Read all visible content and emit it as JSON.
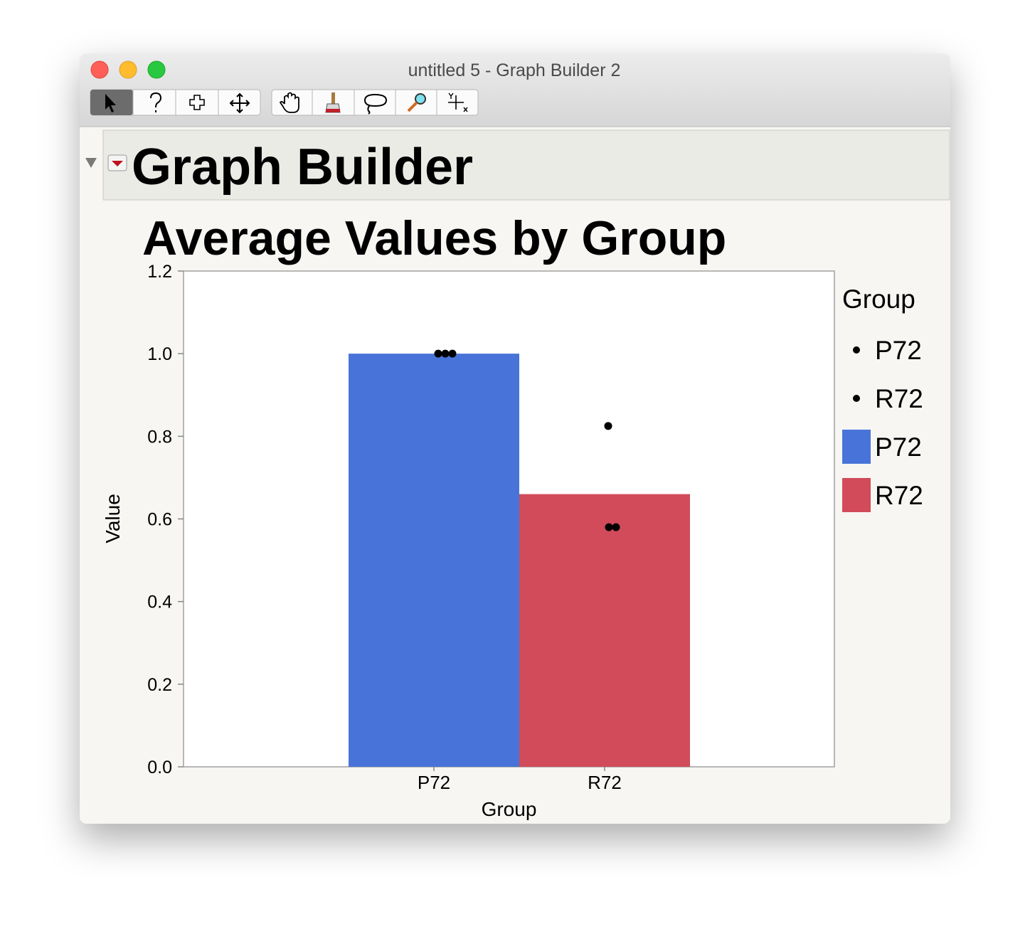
{
  "window": {
    "title": "untitled 5 - Graph Builder 2"
  },
  "outline": {
    "title": "Graph Builder"
  },
  "chart_data": {
    "type": "bar",
    "title": "Average Values by Group",
    "x_label": "Group",
    "y_label": "Value",
    "legend_title": "Group",
    "categories": [
      "P72",
      "R72"
    ],
    "series": [
      {
        "name": "P72",
        "color": "#4874d9",
        "values": [
          1.0,
          null
        ]
      },
      {
        "name": "R72",
        "color": "#d14b5a",
        "values": [
          null,
          0.66
        ]
      }
    ],
    "point_series": [
      {
        "name": "P72",
        "color": "#000000",
        "values": [
          1.0,
          1.0,
          1.0
        ]
      },
      {
        "name": "R72",
        "color": "#000000",
        "values": [
          0.825,
          0.58,
          0.58
        ]
      }
    ],
    "ylim": [
      0,
      1.2
    ],
    "yticks": [
      {
        "value": 0,
        "label": "0.0"
      },
      0.2,
      0.4,
      0.6,
      0.8,
      {
        "value": 1,
        "label": "1.0"
      },
      1.2
    ]
  }
}
